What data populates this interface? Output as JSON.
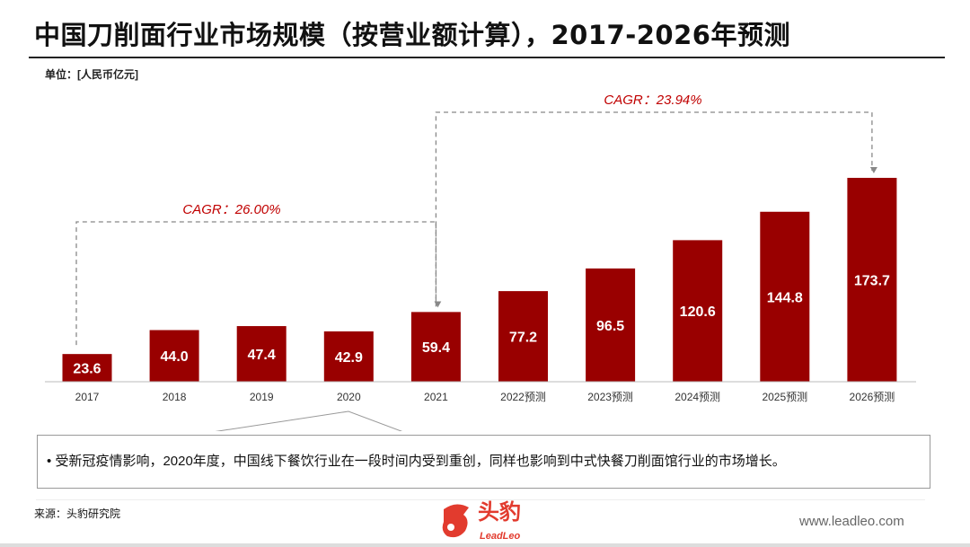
{
  "header": {
    "title": "中国刀削面行业市场规模（按营业额计算），2017-2026年预测",
    "unit": "单位：[人民币亿元]"
  },
  "chart_data": {
    "type": "bar",
    "title": "中国刀削面行业市场规模（按营业额计算），2017-2026年预测",
    "ylabel": "单位：[人民币亿元]",
    "categories": [
      "2017",
      "2018",
      "2019",
      "2020",
      "2021",
      "2022预测",
      "2023预测",
      "2024预测",
      "2025预测",
      "2026预测"
    ],
    "values": [
      23.6,
      44.0,
      47.4,
      42.9,
      59.4,
      77.2,
      96.5,
      120.6,
      144.8,
      173.7
    ],
    "value_labels": [
      "23.6",
      "44.0",
      "47.4",
      "42.9",
      "59.4",
      "77.2",
      "96.5",
      "120.6",
      "144.8",
      "173.7"
    ],
    "bar_color": "#990000",
    "grid": false,
    "annotations": [
      {
        "label": "CAGR：26.00%",
        "from": "2017",
        "to": "2021"
      },
      {
        "label": "CAGR：23.94%",
        "from": "2021",
        "to": "2026预测"
      }
    ],
    "annotation_color": "#c00000"
  },
  "note": {
    "bullet": "•",
    "text": "受新冠疫情影响，2020年度，中国线下餐饮行业在一段时间内受到重创，同样也影响到中式快餐刀削面馆行业的市场增长。"
  },
  "footer": {
    "source": "来源：头豹研究院",
    "logo_cn": "头豹",
    "logo_en": "LeadLeo",
    "url": "www.leadleo.com"
  }
}
